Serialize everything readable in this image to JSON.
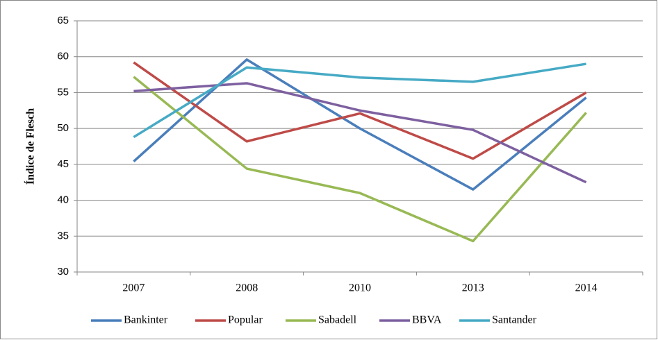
{
  "chart_data": {
    "type": "line",
    "y_label": "Índice de Flesch",
    "categories": [
      "2007",
      "2008",
      "2010",
      "2013",
      "2014"
    ],
    "series": [
      {
        "name": "Bankinter",
        "color": "#4a7ebb",
        "values": [
          45.4,
          59.6,
          50.0,
          41.5,
          54.3
        ]
      },
      {
        "name": "Popular",
        "color": "#be4b48",
        "values": [
          59.2,
          48.2,
          52.1,
          45.8,
          55.0
        ]
      },
      {
        "name": "Sabadell",
        "color": "#98b954",
        "values": [
          57.2,
          44.4,
          41.0,
          34.3,
          52.2
        ]
      },
      {
        "name": "BBVA",
        "color": "#7d60a0",
        "values": [
          55.2,
          56.3,
          52.5,
          49.8,
          42.5
        ]
      },
      {
        "name": "Santander",
        "color": "#46aac5",
        "values": [
          48.8,
          58.5,
          57.1,
          56.5,
          59.0
        ]
      }
    ],
    "ylim": [
      30,
      65
    ],
    "yticks": [
      30,
      35,
      40,
      45,
      50,
      55,
      60,
      65
    ],
    "grid": true,
    "legend": "bottom"
  }
}
